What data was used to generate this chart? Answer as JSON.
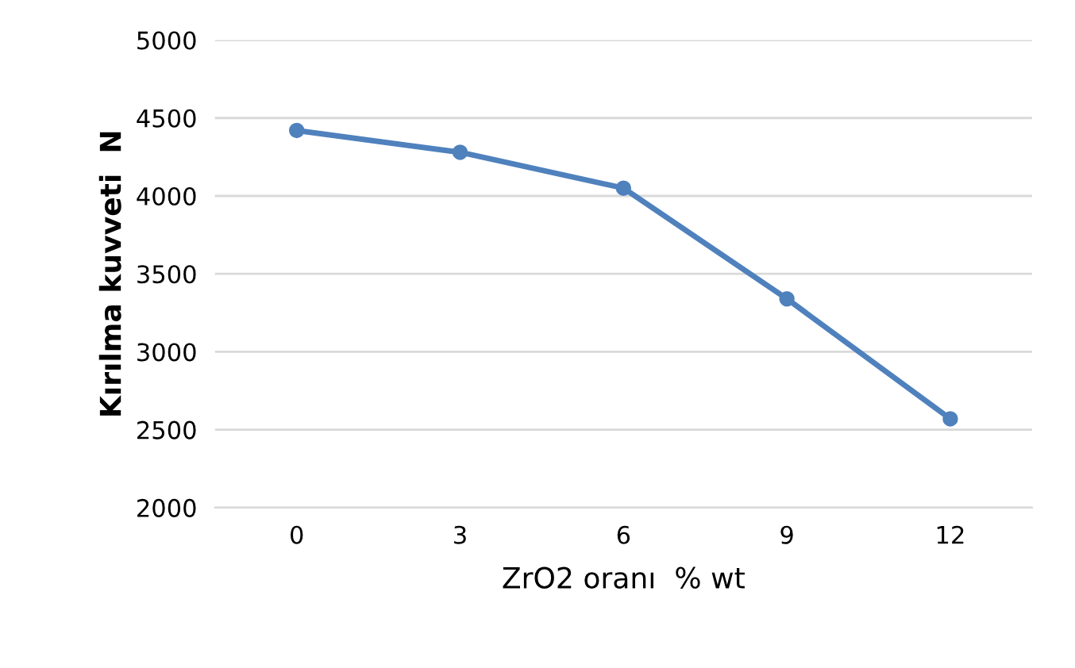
{
  "chart_data": {
    "type": "line",
    "xlabel": "ZrO2 oranı  % wt",
    "ylabel": "Kırılma kuvveti  N",
    "categories": [
      "0",
      "3",
      "6",
      "9",
      "12"
    ],
    "series": [
      {
        "color": "#4f81bd",
        "values": [
          4420,
          4280,
          4050,
          3340,
          2570
        ]
      }
    ],
    "ylim": [
      2000,
      5000
    ],
    "yticks": [
      2000,
      2500,
      3000,
      3500,
      4000,
      4500,
      5000
    ],
    "grid": "y",
    "marker": "circle",
    "line_style": "solid",
    "legend": false
  }
}
